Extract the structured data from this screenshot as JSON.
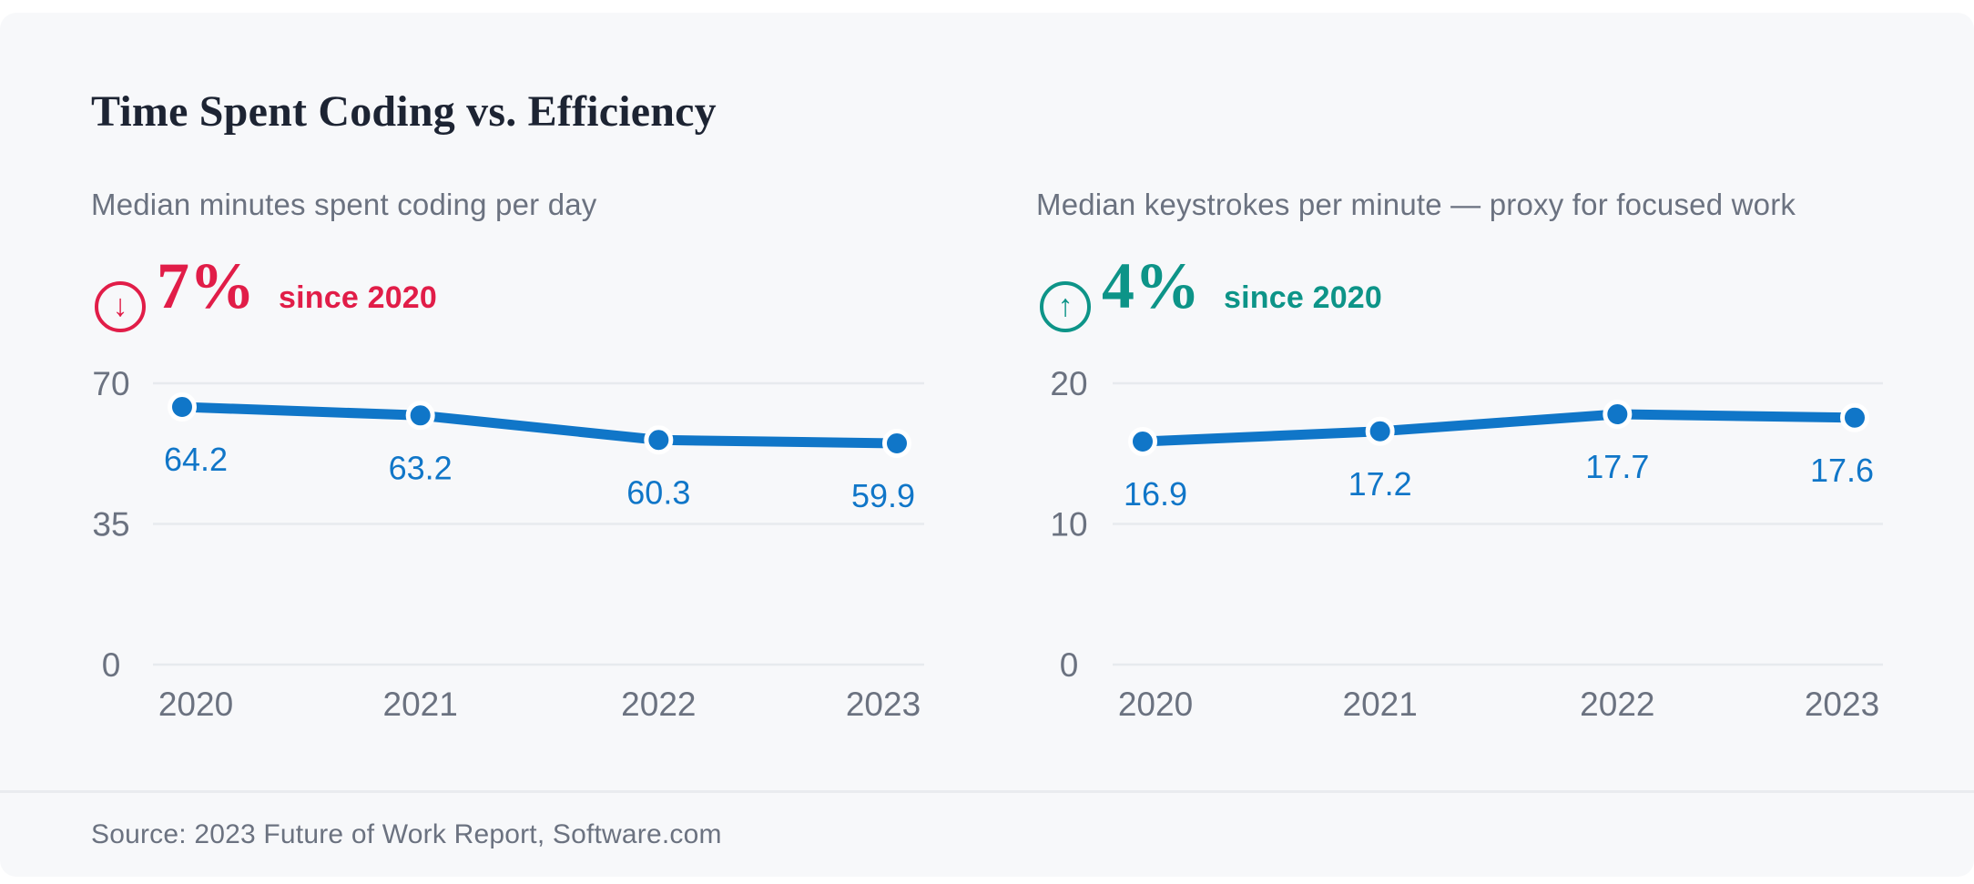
{
  "header": {
    "title": "Time Spent Coding vs. Efficiency"
  },
  "footer": {
    "source": "Source: 2023 Future of Work Report, Software.com"
  },
  "colors": {
    "card_background": "#f7f8fa",
    "title_text": "#1d2433",
    "muted_text": "#6b7280",
    "line_blue": "#1076c8",
    "decline_red": "#e11d48",
    "growth_teal": "#0d9488",
    "gridline": "#e7eaee"
  },
  "chart_data": [
    {
      "type": "line",
      "title": "Median minutes spent coding per day",
      "change": {
        "direction": "down",
        "value": "7%",
        "caption": "since 2020"
      },
      "x": [
        "2020",
        "2021",
        "2022",
        "2023"
      ],
      "values": [
        64.2,
        63.2,
        60.3,
        59.9
      ],
      "data_labels": [
        "64.2",
        "63.2",
        "60.3",
        "59.9"
      ],
      "yticks": [
        0,
        35,
        70
      ],
      "ylim": [
        0,
        70
      ],
      "grid": true,
      "legend": false
    },
    {
      "type": "line",
      "title": "Median keystrokes per minute — proxy for focused work",
      "change": {
        "direction": "up",
        "value": "4%",
        "caption": "since 2020"
      },
      "x": [
        "2020",
        "2021",
        "2022",
        "2023"
      ],
      "values": [
        16.9,
        17.2,
        17.7,
        17.6
      ],
      "data_labels": [
        "16.9",
        "17.2",
        "17.7",
        "17.6"
      ],
      "yticks": [
        0,
        10,
        20
      ],
      "ylim": [
        0,
        20
      ],
      "grid": true,
      "legend": false
    }
  ]
}
